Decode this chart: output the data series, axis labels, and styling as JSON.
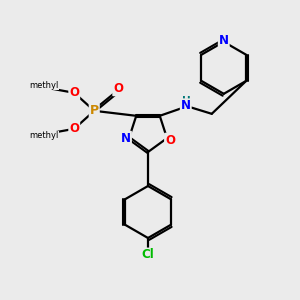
{
  "background_color": "#ebebeb",
  "bond_color": "#000000",
  "atom_colors": {
    "N": "#0000ff",
    "O": "#ff0000",
    "P": "#cc8800",
    "Cl": "#00bb00",
    "H": "#007777",
    "C": "#000000"
  },
  "figsize": [
    3.0,
    3.0
  ],
  "dpi": 100
}
